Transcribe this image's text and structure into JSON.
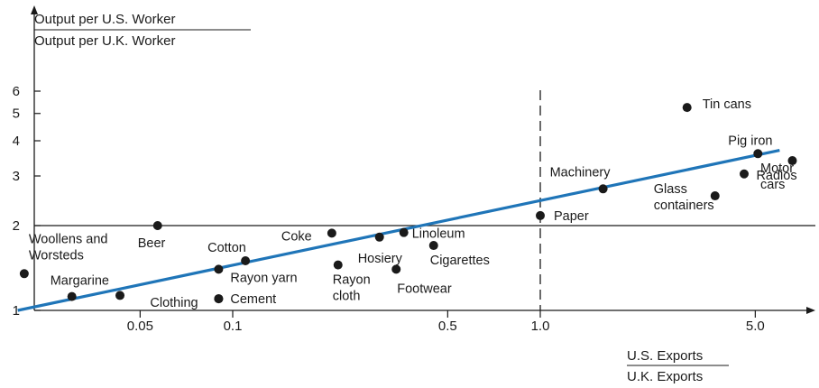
{
  "chart_data": {
    "type": "scatter",
    "y_axis": {
      "title_numerator": "Output per U.S. Worker",
      "title_denominator": "Output per U.K. Worker",
      "scale": "log",
      "ticks": [
        1,
        2,
        3,
        4,
        5,
        6
      ],
      "tick_labels": [
        "1",
        "2",
        "3",
        "4",
        "5",
        "6"
      ]
    },
    "x_axis": {
      "title_numerator": "U.S. Exports",
      "title_denominator": "U.K. Exports",
      "scale": "log",
      "ticks": [
        0.05,
        0.1,
        0.5,
        1.0,
        5.0
      ],
      "tick_labels": [
        "0.05",
        "0.1",
        "0.5",
        "1.0",
        "5.0"
      ]
    },
    "reference_lines": {
      "horizontal_y": 2,
      "vertical_x": 1.0
    },
    "trend_line": {
      "color": "#1f75b8",
      "from": {
        "x": 0.02,
        "y": 1.0
      },
      "to": {
        "x": 6.0,
        "y": 3.7
      }
    },
    "points": [
      {
        "label": "Woollens and",
        "label2": "Worsteds",
        "x": 0.021,
        "y": 1.35
      },
      {
        "label": "Margarine",
        "x": 0.03,
        "y": 1.12
      },
      {
        "label": "",
        "x": 0.043,
        "y": 1.13
      },
      {
        "label": "Beer",
        "x": 0.057,
        "y": 2.0
      },
      {
        "label": "Clothing",
        "x": 0.09,
        "y": 1.1
      },
      {
        "label": "Rayon yarn",
        "x": 0.09,
        "y": 1.4
      },
      {
        "label": "Cement",
        "x": 0.09,
        "y": 1.1
      },
      {
        "label": "Cotton",
        "x": 0.11,
        "y": 1.5
      },
      {
        "label": "Coke",
        "x": 0.21,
        "y": 1.88
      },
      {
        "label": "Rayon",
        "label2": "cloth",
        "x": 0.22,
        "y": 1.45
      },
      {
        "label": "Hosiery",
        "x": 0.3,
        "y": 1.82
      },
      {
        "label": "Footwear",
        "x": 0.34,
        "y": 1.4
      },
      {
        "label": "Linoleum",
        "x": 0.36,
        "y": 1.89
      },
      {
        "label": "Cigarettes",
        "x": 0.45,
        "y": 1.7
      },
      {
        "label": "Paper",
        "x": 1.0,
        "y": 2.17
      },
      {
        "label": "Machinery",
        "x": 1.6,
        "y": 2.7
      },
      {
        "label": "Tin cans",
        "x": 3.0,
        "y": 5.25
      },
      {
        "label": "Glass",
        "label2": "containers",
        "x": 3.7,
        "y": 2.55
      },
      {
        "label": "Motor",
        "label2": "cars",
        "x": 4.6,
        "y": 3.05
      },
      {
        "label": "Pig iron",
        "x": 5.1,
        "y": 3.6
      },
      {
        "label": "Radios",
        "x": 6.6,
        "y": 3.4
      }
    ]
  }
}
